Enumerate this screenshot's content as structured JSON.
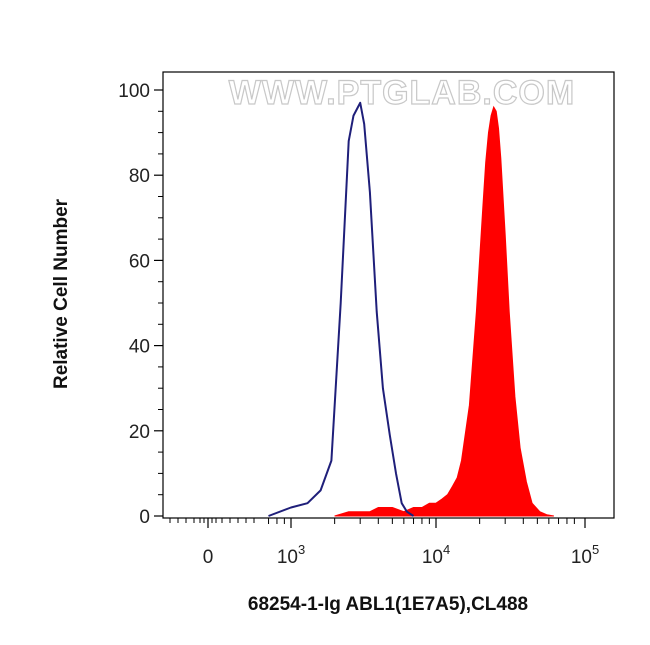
{
  "watermark": "WWW.PTGLAB.COM",
  "chart_data": {
    "type": "area",
    "title": "",
    "xlabel": "68254-1-Ig ABL1(1E7A5),CL488",
    "ylabel": "Relative Cell Number",
    "x_scale": "log",
    "ylim": [
      0,
      100
    ],
    "y_ticks": [
      "0",
      "20",
      "40",
      "60",
      "80",
      "100"
    ],
    "x_ticks": [
      {
        "base": "0",
        "exp": ""
      },
      {
        "base": "10",
        "exp": "3"
      },
      {
        "base": "10",
        "exp": "4"
      },
      {
        "base": "10",
        "exp": "5"
      }
    ],
    "grid": false,
    "legend": "none",
    "series": [
      {
        "style": "outline",
        "color": "#1f1f7a",
        "x": [
          700,
          1000,
          1300,
          1600,
          1900,
          2200,
          2500,
          2700,
          2900,
          3000,
          3200,
          3500,
          3900,
          4300,
          4800,
          5300,
          5800,
          6300,
          7000
        ],
        "y": [
          0,
          2,
          3,
          6,
          13,
          50,
          88,
          94,
          96,
          97,
          92,
          76,
          48,
          30,
          19,
          10,
          3,
          1,
          0
        ]
      },
      {
        "style": "filled",
        "color": "#ff0000",
        "x": [
          2000,
          2500,
          3000,
          3500,
          4000,
          5000,
          6000,
          7000,
          8000,
          9000,
          10000,
          11000,
          12000,
          13000,
          14000,
          15000,
          17000,
          19000,
          21000,
          22000,
          23000,
          24000,
          25000,
          26000,
          27000,
          28000,
          30000,
          32000,
          35000,
          38000,
          42000,
          46000,
          52000,
          58000,
          65000
        ],
        "y": [
          0,
          1,
          1,
          1,
          2,
          2,
          1,
          2,
          2,
          3,
          3,
          4,
          5,
          7,
          9,
          13,
          26,
          48,
          72,
          83,
          90,
          94,
          96,
          95,
          91,
          84,
          66,
          48,
          28,
          16,
          8,
          3,
          1,
          0.3,
          0
        ]
      }
    ]
  }
}
